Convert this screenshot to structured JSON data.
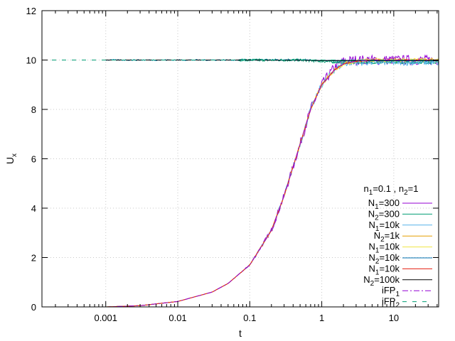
{
  "chart_data": {
    "type": "line",
    "xlabel": "t",
    "ylabel": "U",
    "ylabel_sub": "x",
    "xscale": "log",
    "xlim": [
      0.00013,
      42
    ],
    "ylim": [
      0,
      12
    ],
    "grid": true,
    "legend_placement": "bottom-right",
    "x_ticks": [
      {
        "value": 0.001,
        "label": "0.001"
      },
      {
        "value": 0.01,
        "label": "0.01"
      },
      {
        "value": 0.1,
        "label": "0.1"
      },
      {
        "value": 1,
        "label": "1"
      },
      {
        "value": 10,
        "label": "10"
      }
    ],
    "y_ticks": [
      {
        "value": 0,
        "label": "0"
      },
      {
        "value": 2,
        "label": "2"
      },
      {
        "value": 4,
        "label": "4"
      },
      {
        "value": 6,
        "label": "6"
      },
      {
        "value": 8,
        "label": "8"
      },
      {
        "value": 10,
        "label": "10"
      },
      {
        "value": 12,
        "label": "12"
      }
    ],
    "legend_title": {
      "parts": [
        {
          "text": "n",
          "sub": "1",
          "rest": "=0.1 , "
        },
        {
          "text": "n",
          "sub": "2",
          "rest": "=1"
        }
      ]
    },
    "series": [
      {
        "name": "N1=300",
        "label_main": "N",
        "label_sub": "1",
        "label_rest": "=300",
        "color": "#9400d3",
        "style": "solid",
        "kind": "rise",
        "noise": 0.2,
        "x": [
          0.001,
          0.003,
          0.01,
          0.03,
          0.05,
          0.1,
          0.2,
          0.3,
          0.5,
          0.7,
          1,
          1.5,
          2,
          3,
          5,
          10,
          20,
          42
        ],
        "y": [
          0.0,
          0.05,
          0.22,
          0.6,
          0.95,
          1.7,
          3.1,
          4.5,
          6.6,
          8.0,
          9.0,
          9.7,
          9.95,
          10.0,
          10.0,
          10.0,
          10.0,
          10.0
        ]
      },
      {
        "name": "N2=300",
        "label_main": "N",
        "label_sub": "2",
        "label_rest": "=300",
        "color": "#009e73",
        "style": "solid",
        "kind": "flat",
        "noise": 0.05,
        "x": [
          0.07,
          0.5,
          1,
          2,
          5,
          10,
          20,
          42
        ],
        "y": [
          10.0,
          10.0,
          9.95,
          9.9,
          9.9,
          9.9,
          9.9,
          9.9
        ]
      },
      {
        "name": "N1=10k",
        "label_main": "N",
        "label_sub": "1",
        "label_rest": "=10k",
        "color": "#56b4e9",
        "style": "solid",
        "kind": "rise",
        "noise": 0.12,
        "x": [
          0.001,
          0.003,
          0.01,
          0.03,
          0.05,
          0.1,
          0.2,
          0.3,
          0.5,
          0.7,
          1,
          1.5,
          2,
          3,
          5,
          10,
          20,
          42
        ],
        "y": [
          0.0,
          0.05,
          0.22,
          0.6,
          0.95,
          1.7,
          3.1,
          4.5,
          6.6,
          8.0,
          9.0,
          9.6,
          9.85,
          9.9,
          9.9,
          9.9,
          9.9,
          9.9
        ]
      },
      {
        "name": "N2=1k",
        "label_main": "N",
        "label_sub": "2",
        "label_rest": "=1k",
        "color": "#e69f00",
        "style": "solid",
        "kind": "rise",
        "noise": 0.04,
        "x": [
          0.001,
          0.003,
          0.01,
          0.03,
          0.05,
          0.1,
          0.2,
          0.3,
          0.5,
          0.7,
          1,
          1.5,
          2,
          3,
          5,
          10,
          20,
          42
        ],
        "y": [
          0.0,
          0.05,
          0.22,
          0.6,
          0.95,
          1.7,
          3.1,
          4.5,
          6.6,
          8.0,
          9.0,
          9.6,
          9.85,
          9.95,
          10.0,
          10.0,
          10.0,
          10.0
        ]
      },
      {
        "name": "N1=10k",
        "label_main": "N",
        "label_sub": "1",
        "label_rest": "=10k",
        "color": "#f0e442",
        "style": "solid",
        "kind": "rise",
        "noise": 0.08,
        "x": [
          0.001,
          0.003,
          0.01,
          0.03,
          0.05,
          0.1,
          0.2,
          0.3,
          0.5,
          0.7,
          1,
          1.5,
          2,
          3,
          5,
          10,
          20,
          42
        ],
        "y": [
          0.0,
          0.05,
          0.22,
          0.6,
          0.95,
          1.7,
          3.1,
          4.5,
          6.6,
          8.0,
          9.0,
          9.6,
          9.85,
          9.95,
          10.0,
          10.0,
          10.0,
          10.0
        ]
      },
      {
        "name": "N2=10k",
        "label_main": "N",
        "label_sub": "2",
        "label_rest": "=10k",
        "color": "#0072b2",
        "style": "solid",
        "kind": "flat",
        "noise": 0.02,
        "x": [
          0.001,
          0.01,
          0.07,
          0.5,
          1,
          2,
          5,
          10,
          20,
          42
        ],
        "y": [
          10.0,
          10.0,
          10.0,
          10.0,
          9.98,
          9.97,
          9.97,
          9.97,
          9.97,
          9.97
        ]
      },
      {
        "name": "N1=10k",
        "label_main": "N",
        "label_sub": "1",
        "label_rest": "=10k",
        "color": "#e51e10",
        "style": "solid",
        "kind": "rise",
        "noise": 0.02,
        "x": [
          0.001,
          0.003,
          0.01,
          0.03,
          0.05,
          0.1,
          0.2,
          0.3,
          0.5,
          0.7,
          1,
          1.5,
          2,
          3,
          5,
          10,
          20,
          42
        ],
        "y": [
          0.0,
          0.05,
          0.22,
          0.6,
          0.95,
          1.7,
          3.1,
          4.5,
          6.6,
          8.0,
          9.0,
          9.6,
          9.85,
          9.95,
          10.0,
          10.0,
          10.0,
          10.0
        ]
      },
      {
        "name": "N2=100k",
        "label_main": "N",
        "label_sub": "2",
        "label_rest": "=100k",
        "color": "#000000",
        "style": "solid",
        "kind": "flat",
        "noise": 0.0,
        "x": [
          0.001,
          0.01,
          0.07,
          0.5,
          1,
          2,
          5,
          10,
          20,
          42
        ],
        "y": [
          10.0,
          10.0,
          10.0,
          9.99,
          9.98,
          9.98,
          9.98,
          9.98,
          9.98,
          9.98
        ]
      },
      {
        "name": "iFP1",
        "label_main": "iFP",
        "label_sub": "1",
        "label_rest": "",
        "color": "#9400d3",
        "style": "dashdot",
        "kind": "rise",
        "noise": 0.0,
        "x": [
          0.001,
          0.003,
          0.01,
          0.03,
          0.05,
          0.1,
          0.2,
          0.3,
          0.5,
          0.7,
          1,
          1.5,
          2,
          3,
          5,
          10,
          20,
          42
        ],
        "y": [
          0.0,
          0.05,
          0.22,
          0.6,
          0.95,
          1.7,
          3.1,
          4.5,
          6.6,
          8.0,
          9.0,
          9.6,
          9.85,
          9.95,
          10.0,
          10.0,
          10.0,
          10.0
        ]
      },
      {
        "name": "iFP2",
        "label_main": "iFP",
        "label_sub": "2",
        "label_rest": "",
        "color": "#009e73",
        "style": "dash",
        "kind": "flat",
        "noise": 0.0,
        "x": [
          0.00013,
          0.001,
          0.01,
          0.1,
          1,
          10,
          42
        ],
        "y": [
          10.0,
          10.0,
          10.0,
          10.0,
          10.0,
          10.0,
          10.0
        ]
      }
    ]
  }
}
